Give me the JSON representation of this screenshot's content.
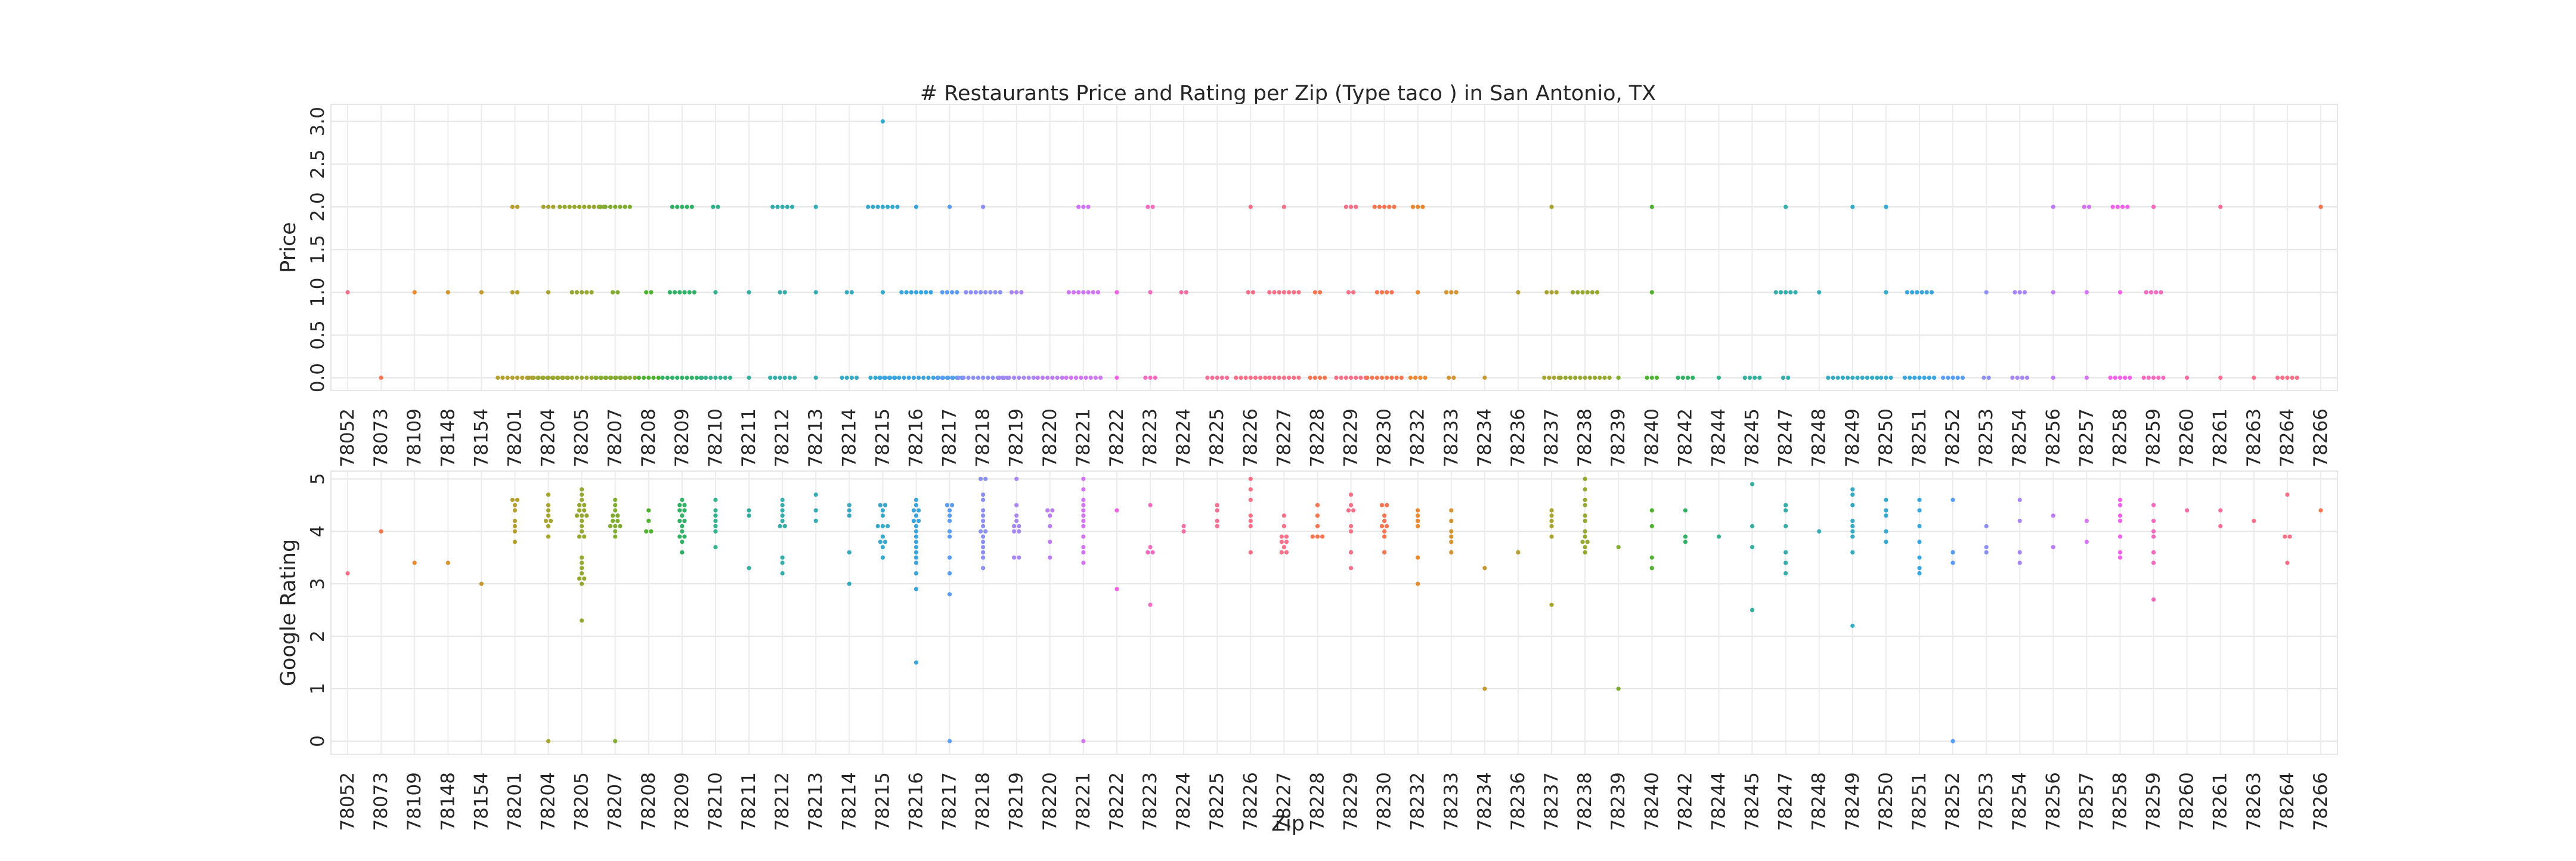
{
  "chart_data": {
    "type": "scatter",
    "title": "# Restaurants Price and Rating per Zip (Type taco ) in San Antonio, TX",
    "xlabel": "Zip",
    "categories": [
      "78052",
      "78073",
      "78109",
      "78148",
      "78154",
      "78201",
      "78204",
      "78205",
      "78207",
      "78208",
      "78209",
      "78210",
      "78211",
      "78212",
      "78213",
      "78214",
      "78215",
      "78216",
      "78217",
      "78218",
      "78219",
      "78220",
      "78221",
      "78222",
      "78223",
      "78224",
      "78225",
      "78226",
      "78227",
      "78228",
      "78229",
      "78230",
      "78232",
      "78233",
      "78234",
      "78236",
      "78237",
      "78238",
      "78239",
      "78240",
      "78242",
      "78244",
      "78245",
      "78247",
      "78248",
      "78249",
      "78250",
      "78251",
      "78252",
      "78253",
      "78254",
      "78256",
      "78257",
      "78258",
      "78259",
      "78260",
      "78261",
      "78263",
      "78264",
      "78266"
    ],
    "category_colors": [
      "#f77189",
      "#f7754f",
      "#e98931",
      "#d39431",
      "#c39a31",
      "#b59f31",
      "#a7a431",
      "#97a831",
      "#80ac31",
      "#50b131",
      "#32b166",
      "#33b08c",
      "#34ae9e",
      "#35adab",
      "#36abb6",
      "#37aac1",
      "#38a8cd",
      "#3aa4dd",
      "#5a9df4",
      "#8c90f4",
      "#a887f4",
      "#bc7df4",
      "#d274f4",
      "#f363e9",
      "#f46bc0",
      "#f56da5",
      "#f66f95",
      "#f77087",
      "#f77189",
      "#f7754f"
    ],
    "grid": true,
    "legend": "none",
    "panels": [
      {
        "ylabel": "Price",
        "ylim": [
          -0.15,
          3.2
        ],
        "yticks": [
          0.0,
          0.5,
          1.0,
          1.5,
          2.0,
          2.5,
          3.0
        ],
        "ytick_labels": [
          "0.0",
          "0.5",
          "1.0",
          "1.5",
          "2.0",
          "2.5",
          "3.0"
        ],
        "values": [
          [
            1
          ],
          [
            0
          ],
          [
            1
          ],
          [
            1
          ],
          [
            1
          ],
          [
            2,
            2,
            1,
            1,
            0,
            0,
            0,
            0,
            0,
            0,
            0,
            0
          ],
          [
            2,
            2,
            2,
            1,
            0,
            0,
            0,
            0,
            0,
            0,
            0,
            0,
            0
          ],
          [
            2,
            2,
            2,
            2,
            2,
            2,
            2,
            2,
            2,
            2,
            1,
            1,
            1,
            1,
            1,
            0,
            0,
            0,
            0,
            0,
            0,
            0,
            0,
            0,
            0,
            0,
            0,
            0,
            0,
            0,
            0,
            0,
            0,
            0
          ],
          [
            2,
            2,
            2,
            2,
            2,
            2,
            2,
            1,
            1,
            0,
            0,
            0,
            0,
            0,
            0,
            0,
            0,
            0
          ],
          [
            1,
            1,
            0,
            0,
            0,
            0,
            0
          ],
          [
            2,
            2,
            2,
            2,
            2,
            1,
            1,
            1,
            1,
            1,
            1,
            0,
            0,
            0,
            0,
            0,
            0,
            0,
            0,
            0
          ],
          [
            2,
            2,
            1,
            0,
            0,
            0,
            0,
            0,
            0,
            0
          ],
          [
            1,
            0
          ],
          [
            2,
            2,
            2,
            2,
            2,
            1,
            1,
            0,
            0,
            0,
            0,
            0,
            0
          ],
          [
            2,
            1,
            0
          ],
          [
            1,
            1,
            0,
            0,
            0,
            0
          ],
          [
            3,
            2,
            2,
            2,
            2,
            2,
            2,
            2,
            1,
            0,
            0,
            0,
            0,
            0,
            0
          ],
          [
            2,
            1,
            1,
            1,
            1,
            1,
            1,
            1,
            0,
            0,
            0,
            0,
            0,
            0,
            0,
            0,
            0,
            0,
            0,
            0,
            0,
            0,
            0,
            0
          ],
          [
            2,
            1,
            1,
            1,
            1,
            0,
            0,
            0,
            0,
            0,
            0
          ],
          [
            2,
            1,
            1,
            1,
            1,
            1,
            1,
            1,
            1,
            0,
            0,
            0,
            0,
            0,
            0,
            0,
            0,
            0,
            0,
            0
          ],
          [
            1,
            1,
            1,
            0,
            0,
            0,
            0,
            0,
            0,
            0,
            0
          ],
          [
            0,
            0,
            0,
            0,
            0,
            0
          ],
          [
            2,
            2,
            2,
            1,
            1,
            1,
            1,
            1,
            1,
            1,
            0,
            0,
            0,
            0,
            0,
            0,
            0,
            0
          ],
          [
            1,
            0
          ],
          [
            2,
            2,
            1,
            0,
            0,
            0
          ],
          [
            1,
            1
          ],
          [
            0,
            0,
            0,
            0,
            0
          ],
          [
            2,
            1,
            1,
            0,
            0,
            0,
            0,
            0,
            0,
            0
          ],
          [
            2,
            1,
            1,
            1,
            1,
            1,
            1,
            1,
            0,
            0,
            0,
            0,
            0,
            0,
            0
          ],
          [
            1,
            1,
            0,
            0,
            0,
            0
          ],
          [
            2,
            2,
            2,
            1,
            1,
            0,
            0,
            0,
            0,
            0,
            0,
            0
          ],
          [
            2,
            2,
            2,
            2,
            2,
            1,
            1,
            1,
            1,
            0,
            0,
            0,
            0,
            0,
            0,
            0,
            0
          ],
          [
            2,
            2,
            2,
            1,
            0,
            0,
            0,
            0
          ],
          [
            1,
            1,
            1,
            0,
            0
          ],
          [
            0
          ],
          [
            1
          ],
          [
            2,
            1,
            1,
            1,
            0,
            0,
            0,
            0
          ],
          [
            1,
            1,
            1,
            1,
            1,
            1,
            0,
            0,
            0,
            0,
            0,
            0,
            0,
            0,
            0,
            0,
            0
          ],
          [
            0
          ],
          [
            2,
            1,
            0,
            0,
            0
          ],
          [
            0,
            0,
            0,
            0
          ],
          [
            0
          ],
          [
            0,
            0,
            0,
            0
          ],
          [
            2,
            1,
            1,
            1,
            1,
            1,
            0,
            0
          ],
          [
            1
          ],
          [
            2,
            0,
            0,
            0,
            0,
            0,
            0,
            0,
            0,
            0,
            0,
            0
          ],
          [
            2,
            1,
            0,
            0,
            0
          ],
          [
            1,
            1,
            1,
            1,
            1,
            1,
            0,
            0,
            0,
            0,
            0,
            0,
            0
          ],
          [
            0,
            0,
            0,
            0,
            0
          ],
          [
            1,
            0,
            0
          ],
          [
            1,
            1,
            1,
            0,
            0,
            0,
            0
          ],
          [
            2,
            1,
            0
          ],
          [
            2,
            2,
            1,
            0
          ],
          [
            2,
            2,
            2,
            2,
            1,
            0,
            0,
            0,
            0,
            0
          ],
          [
            2,
            1,
            1,
            1,
            1,
            0,
            0,
            0,
            0,
            0
          ],
          [
            0
          ],
          [
            2,
            0
          ],
          [
            0
          ],
          [
            0,
            0,
            0,
            0,
            0
          ],
          [
            2
          ]
        ]
      },
      {
        "ylabel": "Google Rating",
        "ylim": [
          -0.25,
          5.15
        ],
        "yticks": [
          0,
          1,
          2,
          3,
          4,
          5
        ],
        "ytick_labels": [
          "0",
          "1",
          "2",
          "3",
          "4",
          "5"
        ],
        "values": [
          [
            3.2
          ],
          [
            4.0
          ],
          [
            3.4
          ],
          [
            3.4
          ],
          [
            3.0
          ],
          [
            4.6,
            4.6,
            4.5,
            4.4,
            4.2,
            4.1,
            4.0,
            3.8
          ],
          [
            4.7,
            4.5,
            4.4,
            4.3,
            4.2,
            4.2,
            4.1,
            3.9,
            0
          ],
          [
            4.8,
            4.7,
            4.6,
            4.5,
            4.5,
            4.4,
            4.4,
            4.3,
            4.3,
            4.3,
            4.2,
            4.1,
            4.0,
            3.9,
            3.9,
            3.5,
            3.4,
            3.3,
            3.2,
            3.1,
            3.1,
            3.0,
            2.3
          ],
          [
            4.6,
            4.5,
            4.4,
            4.3,
            4.3,
            4.2,
            4.2,
            4.1,
            4.1,
            4.1,
            4.0,
            3.9,
            0
          ],
          [
            4.4,
            4.2,
            4.0,
            4.0
          ],
          [
            4.6,
            4.5,
            4.5,
            4.4,
            4.4,
            4.3,
            4.2,
            4.2,
            4.1,
            4.0,
            3.9,
            3.9,
            3.8,
            3.6
          ],
          [
            4.6,
            4.4,
            4.3,
            4.2,
            4.1,
            4.0,
            3.7
          ],
          [
            4.4,
            4.3,
            3.3
          ],
          [
            4.6,
            4.5,
            4.4,
            4.3,
            4.2,
            4.1,
            4.1,
            3.5,
            3.4,
            3.2
          ],
          [
            4.7,
            4.4,
            4.2
          ],
          [
            4.5,
            4.4,
            4.3,
            3.6,
            3.0
          ],
          [
            4.5,
            4.5,
            4.4,
            4.3,
            4.1,
            4.1,
            4.1,
            3.9,
            3.8,
            3.8,
            3.7,
            3.5
          ],
          [
            4.6,
            4.5,
            4.4,
            4.4,
            4.3,
            4.2,
            4.2,
            4.1,
            4.0,
            3.9,
            3.8,
            3.7,
            3.6,
            3.5,
            3.4,
            3.2,
            2.9,
            1.5
          ],
          [
            4.5,
            4.5,
            4.4,
            4.3,
            4.2,
            4.0,
            3.9,
            3.5,
            3.2,
            2.8,
            0
          ],
          [
            5.0,
            5.0,
            4.7,
            4.6,
            4.4,
            4.3,
            4.2,
            4.1,
            4.0,
            4.0,
            3.9,
            3.8,
            3.7,
            3.6,
            3.5,
            3.3
          ],
          [
            5.0,
            4.5,
            4.3,
            4.2,
            4.1,
            4.1,
            4.0,
            4.0,
            3.5,
            3.5
          ],
          [
            4.4,
            4.4,
            4.3,
            4.1,
            3.8,
            3.5
          ],
          [
            5.0,
            4.8,
            4.6,
            4.5,
            4.4,
            4.3,
            4.2,
            4.1,
            3.9,
            3.7,
            3.6,
            3.4,
            0
          ],
          [
            4.4,
            2.9
          ],
          [
            4.5,
            3.7,
            3.6,
            3.6,
            2.6
          ],
          [
            4.1,
            4.0
          ],
          [
            4.5,
            4.4,
            4.2,
            4.1
          ],
          [
            5.0,
            4.8,
            4.6,
            4.3,
            4.2,
            4.1,
            3.6
          ],
          [
            4.3,
            4.1,
            3.9,
            3.9,
            3.8,
            3.8,
            3.7,
            3.6,
            3.6
          ],
          [
            4.5,
            4.3,
            4.1,
            3.9,
            3.9,
            3.9
          ],
          [
            4.7,
            4.5,
            4.4,
            4.4,
            4.1,
            4.0,
            3.6,
            3.3
          ],
          [
            4.5,
            4.5,
            4.3,
            4.2,
            4.1,
            4.1,
            4.0,
            3.9,
            3.6
          ],
          [
            4.4,
            4.3,
            4.2,
            4.1,
            3.5,
            3.0
          ],
          [
            4.4,
            4.2,
            4.0,
            3.9,
            3.8,
            3.6
          ],
          [
            3.3,
            1.0
          ],
          [
            3.6
          ],
          [
            4.4,
            4.3,
            4.2,
            4.1,
            3.9,
            2.6
          ],
          [
            5.0,
            4.8,
            4.6,
            4.5,
            4.3,
            4.2,
            4.0,
            3.9,
            3.8,
            3.8,
            3.7,
            3.6
          ],
          [
            3.7,
            1.0
          ],
          [
            4.4,
            4.1,
            3.5,
            3.3
          ],
          [
            4.4,
            3.9,
            3.8
          ],
          [
            3.9
          ],
          [
            4.9,
            4.1,
            3.7,
            2.5
          ],
          [
            4.5,
            4.4,
            4.1,
            3.6,
            3.4,
            3.2
          ],
          [
            4.0
          ],
          [
            4.8,
            4.7,
            4.5,
            4.2,
            4.1,
            4.0,
            3.9,
            3.6,
            2.2
          ],
          [
            4.6,
            4.4,
            4.3,
            4.0,
            3.8
          ],
          [
            4.6,
            4.4,
            4.1,
            3.8,
            3.5,
            3.3,
            3.2
          ],
          [
            4.6,
            3.6,
            3.4,
            0
          ],
          [
            4.1,
            3.7,
            3.6
          ],
          [
            4.6,
            4.2,
            3.6,
            3.4
          ],
          [
            4.3,
            3.7
          ],
          [
            4.2,
            3.8
          ],
          [
            4.6,
            4.5,
            4.3,
            4.2,
            3.9,
            3.6,
            3.5
          ],
          [
            4.5,
            4.2,
            4.0,
            3.9,
            3.6,
            3.4,
            2.7
          ],
          [
            4.4
          ],
          [
            4.4,
            4.1
          ],
          [
            4.2
          ],
          [
            4.7,
            3.9,
            3.9,
            3.4
          ],
          [
            4.4
          ]
        ]
      }
    ]
  }
}
